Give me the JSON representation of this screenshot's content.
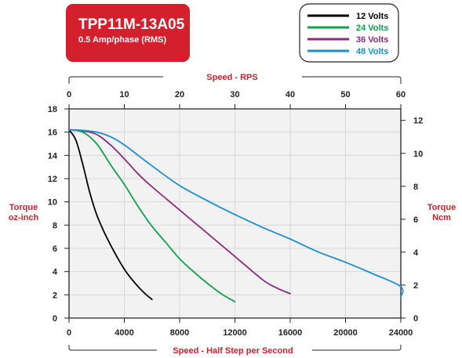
{
  "title_box": {
    "model": "TPP11M-13A05",
    "spec": "0.5 Amp/phase (RMS)"
  },
  "colors": {
    "brand_red": "#d4202c",
    "grid": "#d8d8d8",
    "plot_bg": "#f2f2f2"
  },
  "chart_data": {
    "type": "line",
    "title": "TPP11M-13A05",
    "subtitle": "0.5 Amp/phase (RMS)",
    "x_axis_bottom": {
      "label": "Speed - Half Step per Second",
      "range": [
        0,
        24000
      ],
      "ticks": [
        "0",
        "4000",
        "8000",
        "12000",
        "16000",
        "20000",
        "24000"
      ]
    },
    "x_axis_top": {
      "label": "Speed - RPS",
      "range": [
        0,
        60
      ],
      "ticks": [
        "0",
        "10",
        "20",
        "30",
        "40",
        "50",
        "60"
      ]
    },
    "y_axis_left": {
      "label_line1": "Torque",
      "label_line2": "oz-inch",
      "range": [
        0,
        18
      ],
      "ticks": [
        "0",
        "2",
        "4",
        "6",
        "8",
        "10",
        "12",
        "14",
        "16",
        "18"
      ]
    },
    "y_axis_right": {
      "label_line1": "Torque",
      "label_line2": "Ncm",
      "range": [
        0,
        12.7
      ],
      "ticks": [
        "0",
        "2",
        "4",
        "6",
        "8",
        "10",
        "12"
      ]
    },
    "grid": true,
    "legend_position": "top-right",
    "series": [
      {
        "name": "12 Volts",
        "color": "#000000",
        "points": [
          [
            0,
            16.2
          ],
          [
            500,
            15.3
          ],
          [
            1000,
            13.2
          ],
          [
            1500,
            10.8
          ],
          [
            2000,
            8.9
          ],
          [
            2500,
            7.5
          ],
          [
            3000,
            6.3
          ],
          [
            3500,
            5.2
          ],
          [
            4000,
            4.2
          ],
          [
            4500,
            3.4
          ],
          [
            5000,
            2.7
          ],
          [
            5500,
            2.1
          ],
          [
            6000,
            1.6
          ]
        ]
      },
      {
        "name": "24 Volts",
        "color": "#12a14b",
        "points": [
          [
            0,
            16.2
          ],
          [
            1000,
            16.0
          ],
          [
            2000,
            15.0
          ],
          [
            3000,
            13.2
          ],
          [
            4000,
            11.5
          ],
          [
            5000,
            9.6
          ],
          [
            6000,
            7.9
          ],
          [
            7000,
            6.5
          ],
          [
            8000,
            5.1
          ],
          [
            9000,
            4.0
          ],
          [
            10000,
            3.0
          ],
          [
            11000,
            2.1
          ],
          [
            12000,
            1.4
          ]
        ]
      },
      {
        "name": "36 Volts",
        "color": "#8e2a7c",
        "points": [
          [
            0,
            16.2
          ],
          [
            1000,
            16.1
          ],
          [
            2000,
            15.8
          ],
          [
            3000,
            14.9
          ],
          [
            4000,
            13.7
          ],
          [
            5000,
            12.4
          ],
          [
            6000,
            11.3
          ],
          [
            8000,
            9.3
          ],
          [
            10000,
            7.3
          ],
          [
            12000,
            5.3
          ],
          [
            14000,
            3.3
          ],
          [
            15000,
            2.6
          ],
          [
            16000,
            2.1
          ]
        ]
      },
      {
        "name": "48 Volts",
        "color": "#1b8fd1",
        "points": [
          [
            0,
            16.2
          ],
          [
            1000,
            16.15
          ],
          [
            2000,
            16.0
          ],
          [
            3000,
            15.6
          ],
          [
            4000,
            14.9
          ],
          [
            5000,
            14.0
          ],
          [
            6000,
            13.1
          ],
          [
            8000,
            11.4
          ],
          [
            10000,
            10.1
          ],
          [
            12000,
            8.9
          ],
          [
            14000,
            7.8
          ],
          [
            16000,
            6.8
          ],
          [
            18000,
            5.7
          ],
          [
            20000,
            4.8
          ],
          [
            22000,
            3.8
          ],
          [
            24000,
            2.7
          ],
          [
            24000,
            1.8
          ]
        ]
      }
    ]
  }
}
